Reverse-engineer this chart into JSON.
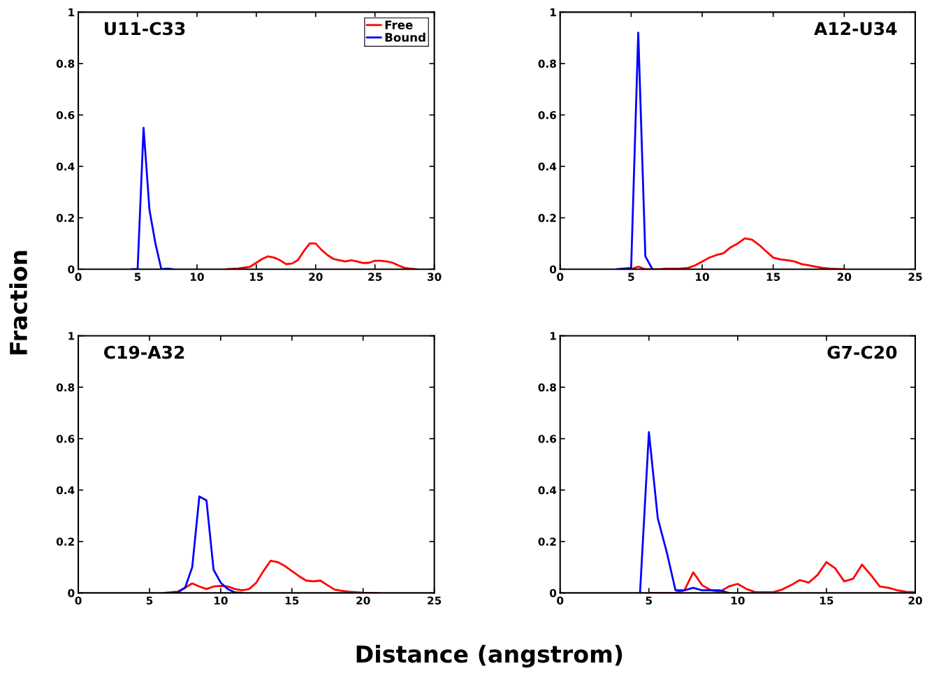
{
  "chart_data": [
    {
      "type": "line",
      "annotations": [
        "U11-C33"
      ],
      "ylabel": "Fraction",
      "xlim": [
        0,
        30
      ],
      "xticks": [
        0,
        5,
        10,
        15,
        20,
        25,
        30
      ],
      "ylim": [
        0,
        1
      ],
      "yticks": [
        0,
        0.2,
        0.4,
        0.6,
        0.8,
        1
      ],
      "grid": false,
      "legend": "top right",
      "series": [
        {
          "name": "Free",
          "color": "#ff0000",
          "x": [
            12.5,
            13.5,
            14.5,
            15,
            15.5,
            16,
            16.5,
            17,
            17.5,
            18,
            18.5,
            19,
            19.5,
            20,
            20.5,
            21,
            21.5,
            22,
            22.5,
            23,
            23.5,
            24,
            24.5,
            25,
            25.5,
            26,
            26.5,
            27,
            27.5,
            28,
            28.5
          ],
          "values": [
            0,
            0.003,
            0.01,
            0.025,
            0.04,
            0.05,
            0.045,
            0.035,
            0.02,
            0.022,
            0.035,
            0.07,
            0.1,
            0.1,
            0.075,
            0.055,
            0.04,
            0.035,
            0.03,
            0.035,
            0.03,
            0.024,
            0.025,
            0.033,
            0.033,
            0.03,
            0.025,
            0.014,
            0.005,
            0.002,
            0
          ]
        },
        {
          "name": "Bound",
          "color": "#0000ff",
          "x": [
            4.5,
            5,
            5.5,
            6,
            6.5,
            7,
            7.5,
            8
          ],
          "values": [
            0,
            0,
            0.55,
            0.23,
            0.1,
            0,
            0.002,
            0
          ]
        }
      ]
    },
    {
      "type": "line",
      "annotations": [
        "A12-U34"
      ],
      "xlim": [
        0,
        25
      ],
      "xticks": [
        0,
        5,
        10,
        15,
        20,
        25
      ],
      "ylim": [
        0,
        1
      ],
      "yticks": [
        0,
        0.2,
        0.4,
        0.6,
        0.8,
        1
      ],
      "grid": false,
      "series": [
        {
          "color": "#ff0000",
          "x": [
            5,
            5.5,
            6,
            7,
            7.5,
            8,
            8.5,
            9,
            9.5,
            10,
            10.5,
            11,
            11.5,
            12,
            12.5,
            13,
            13.5,
            14,
            14.5,
            15,
            15.5,
            16,
            16.5,
            17,
            17.5,
            18,
            18.5,
            19,
            19.5,
            20
          ],
          "values": [
            0,
            0.01,
            0,
            0,
            0.002,
            0.002,
            0.003,
            0.005,
            0.015,
            0.03,
            0.045,
            0.055,
            0.062,
            0.085,
            0.1,
            0.12,
            0.115,
            0.095,
            0.07,
            0.045,
            0.038,
            0.035,
            0.03,
            0.02,
            0.015,
            0.01,
            0.005,
            0.002,
            0.001,
            0
          ]
        },
        {
          "color": "#0000ff",
          "x": [
            4,
            5,
            5.5,
            6,
            6.5
          ],
          "values": [
            0,
            0.005,
            0.92,
            0.05,
            0
          ]
        }
      ]
    },
    {
      "type": "line",
      "annotations": [
        "C19-A32"
      ],
      "xlabel": "Distance (angstrom)",
      "xlim": [
        0,
        25
      ],
      "xticks": [
        0,
        5,
        10,
        15,
        20,
        25
      ],
      "ylim": [
        0,
        1
      ],
      "yticks": [
        0,
        0.2,
        0.4,
        0.6,
        0.8,
        1
      ],
      "grid": false,
      "series": [
        {
          "color": "#ff0000",
          "x": [
            6,
            7,
            7.5,
            8,
            8.5,
            9,
            9.5,
            10,
            10.5,
            11,
            11.5,
            12,
            12.5,
            13,
            13.5,
            14,
            14.5,
            15,
            15.5,
            16,
            16.5,
            17,
            17.5,
            18,
            18.5,
            19,
            19.5,
            20,
            21
          ],
          "values": [
            0,
            0.005,
            0.02,
            0.037,
            0.025,
            0.015,
            0.025,
            0.027,
            0.025,
            0.015,
            0.01,
            0.015,
            0.04,
            0.085,
            0.125,
            0.12,
            0.105,
            0.085,
            0.065,
            0.048,
            0.045,
            0.048,
            0.03,
            0.013,
            0.008,
            0.005,
            0.003,
            0.001,
            0
          ]
        },
        {
          "color": "#0000ff",
          "x": [
            6.5,
            7,
            7.5,
            8,
            8.5,
            9,
            9.5,
            10,
            10.5,
            11,
            11.5
          ],
          "values": [
            0,
            0.003,
            0.02,
            0.1,
            0.375,
            0.36,
            0.09,
            0.04,
            0.015,
            0.002,
            0
          ]
        }
      ]
    },
    {
      "type": "line",
      "annotations": [
        "G7-C20"
      ],
      "xlim": [
        0,
        20
      ],
      "xticks": [
        0,
        5,
        10,
        15,
        20
      ],
      "ylim": [
        0,
        1
      ],
      "yticks": [
        0,
        0.2,
        0.4,
        0.6,
        0.8,
        1
      ],
      "grid": false,
      "series": [
        {
          "color": "#ff0000",
          "x": [
            5,
            6.5,
            7,
            7.5,
            8,
            8.5,
            9,
            9.5,
            10,
            10.5,
            11,
            12,
            12.5,
            13,
            13.5,
            14,
            14.5,
            15,
            15.5,
            16,
            16.5,
            17,
            17.5,
            18,
            18.5,
            19,
            19.5,
            20
          ],
          "values": [
            0,
            0,
            0.01,
            0.08,
            0.03,
            0.01,
            0.005,
            0.025,
            0.035,
            0.015,
            0.003,
            0.003,
            0.013,
            0.03,
            0.05,
            0.04,
            0.07,
            0.12,
            0.095,
            0.045,
            0.055,
            0.11,
            0.07,
            0.025,
            0.02,
            0.01,
            0.004,
            0.003
          ]
        },
        {
          "color": "#0000ff",
          "x": [
            4.5,
            5,
            5.5,
            6,
            6.5,
            7,
            7.5,
            8,
            8.5,
            9,
            9.5
          ],
          "values": [
            0,
            0.625,
            0.29,
            0.16,
            0.01,
            0.01,
            0.02,
            0.01,
            0.01,
            0.01,
            0
          ]
        }
      ]
    }
  ]
}
